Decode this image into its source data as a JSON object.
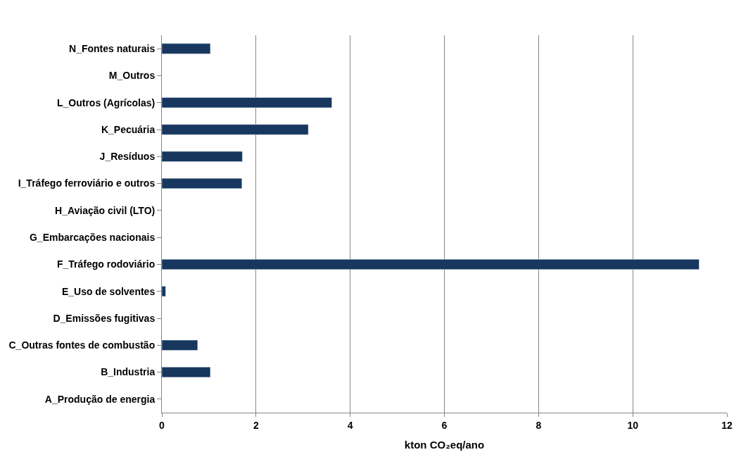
{
  "chart_data": {
    "type": "bar",
    "orientation": "horizontal",
    "xlabel": "kton CO₂eq/ano",
    "categories": [
      "N_Fontes naturais",
      "M_Outros",
      "L_Outros (Agrícolas)",
      "K_Pecuária",
      "J_Resíduos",
      "I_Tráfego ferroviário e outros",
      "H_Aviação civil (LTO)",
      "G_Embarcações nacionais",
      "F_Tráfego rodoviário",
      "E_Uso de solventes",
      "D_Emissões fugitivas",
      "C_Outras fontes de combustão",
      "B_Industria",
      "A_Produção de energia"
    ],
    "values": [
      1.03,
      null,
      3.61,
      3.11,
      1.71,
      1.7,
      null,
      null,
      11.41,
      0.08,
      null,
      0.76,
      1.03,
      null
    ],
    "color": "#17375e",
    "xlim": [
      0,
      12
    ],
    "xticks": [
      0,
      2,
      4,
      6,
      8,
      10,
      12
    ],
    "grid": "x",
    "legend": false
  }
}
